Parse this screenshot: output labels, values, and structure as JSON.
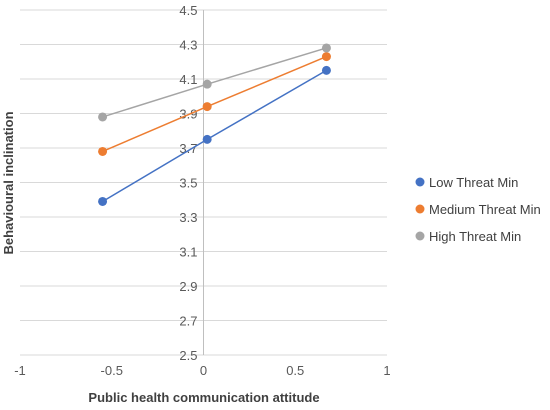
{
  "chart_data": {
    "type": "line",
    "title": "",
    "xlabel": "Public health communication attitude",
    "ylabel": "Behavioural inclination",
    "xlim": [
      -1,
      1
    ],
    "ylim": [
      2.5,
      4.5
    ],
    "x_ticks": [
      "-1",
      "-0.5",
      "0",
      "0.5",
      "1"
    ],
    "y_ticks": [
      "2.5",
      "2.7",
      "2.9",
      "3.1",
      "3.3",
      "3.5",
      "3.7",
      "3.9",
      "4.1",
      "4.3",
      "4.5"
    ],
    "grid": "horizontal",
    "legend_position": "right",
    "series": [
      {
        "name": "Low Threat Min",
        "color": "#4472C4",
        "points": [
          {
            "x": -0.55,
            "y": 3.39
          },
          {
            "x": 0.02,
            "y": 3.75
          },
          {
            "x": 0.67,
            "y": 4.15
          }
        ]
      },
      {
        "name": "Medium Threat Min",
        "color": "#ED7D31",
        "points": [
          {
            "x": -0.55,
            "y": 3.68
          },
          {
            "x": 0.02,
            "y": 3.94
          },
          {
            "x": 0.67,
            "y": 4.23
          }
        ]
      },
      {
        "name": "High Threat Min",
        "color": "#A5A5A5",
        "points": [
          {
            "x": -0.55,
            "y": 3.88
          },
          {
            "x": 0.02,
            "y": 4.07
          },
          {
            "x": 0.67,
            "y": 4.28
          }
        ]
      }
    ]
  }
}
